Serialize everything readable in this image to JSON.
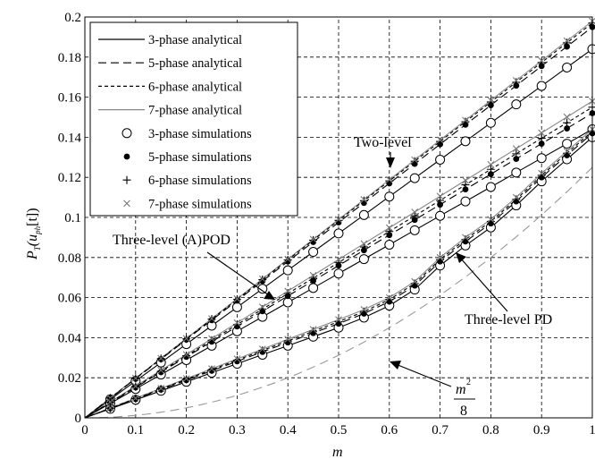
{
  "chart_data": {
    "type": "line",
    "xlabel": "m",
    "ylabel": {
      "main": "P",
      "sub1": "T",
      "mid": "(u",
      "sub2": "ph",
      "tail": "[t])"
    },
    "xlim": [
      0,
      1
    ],
    "ylim": [
      0,
      0.2
    ],
    "x_ticks": [
      0,
      0.1,
      0.2,
      0.3,
      0.4,
      0.5,
      0.6,
      0.7,
      0.8,
      0.9,
      1
    ],
    "x_tick_labels": [
      "0",
      "0.1",
      "0.2",
      "0.3",
      "0.4",
      "0.5",
      "0.6",
      "0.7",
      "0.8",
      "0.9",
      "1"
    ],
    "y_ticks": [
      0,
      0.02,
      0.04,
      0.06,
      0.08,
      0.1,
      0.12,
      0.14,
      0.16,
      0.18,
      0.2
    ],
    "y_tick_labels": [
      "0",
      "0.02",
      "0.04",
      "0.06",
      "0.08",
      "0.1",
      "0.12",
      "0.14",
      "0.16",
      "0.18",
      "0.2"
    ],
    "grid": true,
    "legend_position": "top-left",
    "legend": [
      {
        "label": "3-phase analytical",
        "kind": "line",
        "style": "solid",
        "color": "#000000"
      },
      {
        "label": "5-phase analytical",
        "kind": "line",
        "style": "dash",
        "color": "#000000"
      },
      {
        "label": "6-phase analytical",
        "kind": "line",
        "style": "shortdash",
        "color": "#000000"
      },
      {
        "label": "7-phase analytical",
        "kind": "line",
        "style": "solid",
        "color": "#888888"
      },
      {
        "label": "3-phase simulations",
        "kind": "marker",
        "marker": "circle"
      },
      {
        "label": "5-phase simulations",
        "kind": "marker",
        "marker": "dot"
      },
      {
        "label": "6-phase simulations",
        "kind": "marker",
        "marker": "plus"
      },
      {
        "label": "7-phase simulations",
        "kind": "marker",
        "marker": "cross"
      }
    ],
    "x_sim": [
      0.05,
      0.1,
      0.15,
      0.2,
      0.25,
      0.3,
      0.35,
      0.4,
      0.45,
      0.5,
      0.55,
      0.6,
      0.65,
      0.7,
      0.75,
      0.8,
      0.85,
      0.9,
      0.95,
      1.0
    ],
    "groups": [
      {
        "name": "Two-level",
        "lines": {
          "3": [
            0.0092,
            0.0184,
            0.0276,
            0.0368,
            0.046,
            0.0552,
            0.0644,
            0.0736,
            0.0828,
            0.092,
            0.1012,
            0.1104,
            0.1196,
            0.1288,
            0.138,
            0.1472,
            0.1564,
            0.1656,
            0.1748,
            0.184
          ],
          "5": [
            0.00975,
            0.0195,
            0.02925,
            0.039,
            0.04875,
            0.0585,
            0.06825,
            0.078,
            0.08775,
            0.0975,
            0.10725,
            0.117,
            0.12675,
            0.1365,
            0.14625,
            0.156,
            0.16575,
            0.1755,
            0.18525,
            0.195
          ],
          "6": [
            0.00985,
            0.0197,
            0.02955,
            0.0394,
            0.04925,
            0.0591,
            0.06895,
            0.0788,
            0.08865,
            0.0985,
            0.10835,
            0.1182,
            0.12805,
            0.1379,
            0.14775,
            0.1576,
            0.16745,
            0.1773,
            0.18715,
            0.197
          ],
          "7": [
            0.0099,
            0.0198,
            0.0297,
            0.0396,
            0.0495,
            0.0594,
            0.0693,
            0.0792,
            0.0891,
            0.099,
            0.1089,
            0.1188,
            0.1287,
            0.1386,
            0.1485,
            0.1584,
            0.1683,
            0.1782,
            0.1881,
            0.198
          ]
        }
      },
      {
        "name": "Three-level (A)POD",
        "lines": {
          "3": [
            0.0072,
            0.0144,
            0.0216,
            0.0288,
            0.036,
            0.0432,
            0.0504,
            0.0576,
            0.0648,
            0.072,
            0.0792,
            0.0864,
            0.0936,
            0.1008,
            0.108,
            0.1152,
            0.1224,
            0.1296,
            0.1368,
            0.144
          ],
          "5": [
            0.0076,
            0.0152,
            0.0228,
            0.0304,
            0.038,
            0.0456,
            0.0532,
            0.0608,
            0.0684,
            0.076,
            0.0836,
            0.0912,
            0.0988,
            0.1064,
            0.114,
            0.1216,
            0.1292,
            0.1368,
            0.1444,
            0.152
          ],
          "6": [
            0.00775,
            0.0155,
            0.02325,
            0.031,
            0.03875,
            0.0465,
            0.05425,
            0.062,
            0.06975,
            0.0775,
            0.08525,
            0.093,
            0.10075,
            0.1085,
            0.11625,
            0.124,
            0.13175,
            0.1395,
            0.14725,
            0.155
          ],
          "7": [
            0.0079,
            0.0158,
            0.0237,
            0.0316,
            0.0395,
            0.0474,
            0.0553,
            0.0632,
            0.0711,
            0.079,
            0.0869,
            0.0948,
            0.1027,
            0.1106,
            0.1185,
            0.1264,
            0.1343,
            0.1422,
            0.1501,
            0.158
          ]
        }
      },
      {
        "name": "Three-level PD",
        "lines": {
          "3": [
            0.0045,
            0.009,
            0.0135,
            0.018,
            0.0225,
            0.027,
            0.0315,
            0.036,
            0.0405,
            0.045,
            0.05,
            0.056,
            0.064,
            0.076,
            0.086,
            0.095,
            0.106,
            0.118,
            0.129,
            0.14
          ],
          "5": [
            0.0047,
            0.0094,
            0.0141,
            0.0188,
            0.0235,
            0.0282,
            0.0329,
            0.0376,
            0.0423,
            0.047,
            0.052,
            0.058,
            0.066,
            0.078,
            0.088,
            0.097,
            0.108,
            0.12,
            0.131,
            0.142
          ],
          "6": [
            0.0048,
            0.0096,
            0.0144,
            0.0192,
            0.024,
            0.0288,
            0.0336,
            0.0384,
            0.0432,
            0.048,
            0.053,
            0.059,
            0.067,
            0.079,
            0.089,
            0.098,
            0.109,
            0.121,
            0.132,
            0.143
          ],
          "7": [
            0.0049,
            0.0098,
            0.0147,
            0.0196,
            0.0245,
            0.0294,
            0.0343,
            0.0392,
            0.0441,
            0.049,
            0.054,
            0.06,
            0.068,
            0.08,
            0.09,
            0.099,
            0.11,
            0.122,
            0.133,
            0.144
          ]
        }
      }
    ],
    "reference_curve": {
      "label_num": "m",
      "label_sup": "2",
      "label_den": "8",
      "formula": "m^2/8",
      "style": "dashed",
      "color": "#999999"
    },
    "annotations": [
      {
        "text": "Two-level",
        "arrow_to": [
          0.6,
          0.117
        ]
      },
      {
        "text": "Three-level (A)POD",
        "arrow_to": [
          0.4,
          0.058
        ]
      },
      {
        "text": "Three-level PD",
        "arrow_to": [
          0.72,
          0.081
        ]
      },
      {
        "text": "m²/8",
        "arrow_to": [
          0.6,
          0.045
        ]
      }
    ]
  }
}
